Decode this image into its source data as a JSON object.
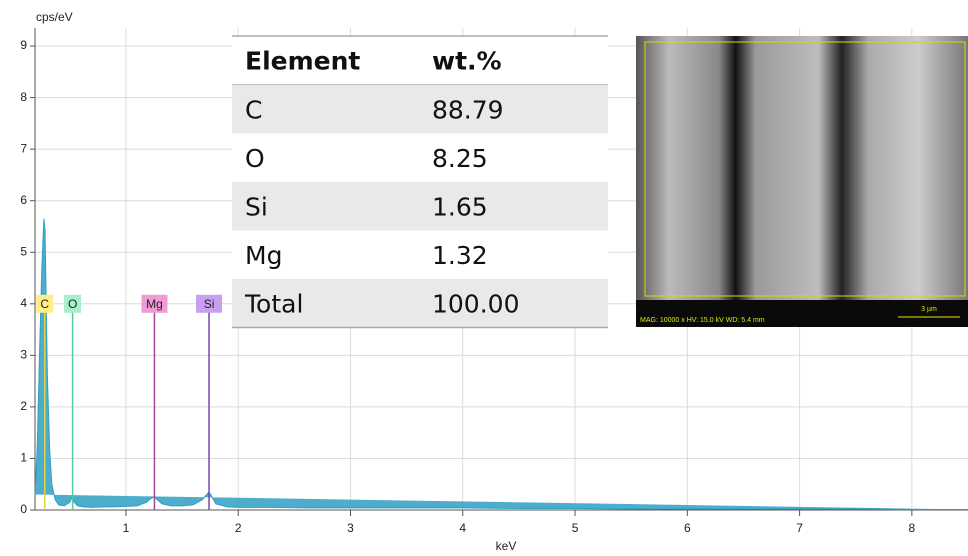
{
  "chart_data": {
    "type": "line",
    "y_label": "cps/eV",
    "x_label": "keV",
    "x": [
      0.19,
      0.21,
      0.23,
      0.25,
      0.26,
      0.27,
      0.28,
      0.29,
      0.3,
      0.32,
      0.34,
      0.37,
      0.4,
      0.45,
      0.5,
      0.52,
      0.54,
      0.57,
      0.62,
      0.7,
      0.8,
      0.9,
      1.0,
      1.1,
      1.18,
      1.22,
      1.25,
      1.28,
      1.32,
      1.4,
      1.5,
      1.6,
      1.68,
      1.72,
      1.74,
      1.76,
      1.8,
      1.9,
      2.0,
      2.3,
      2.6,
      3.0,
      3.5,
      4.0,
      4.5,
      5.0,
      5.5,
      6.0,
      6.5,
      7.0,
      7.5,
      8.0,
      8.5
    ],
    "values": [
      0.3,
      1.2,
      3.0,
      4.6,
      5.2,
      5.65,
      5.4,
      4.0,
      2.6,
      1.2,
      0.5,
      0.2,
      0.1,
      0.08,
      0.15,
      0.25,
      0.15,
      0.08,
      0.06,
      0.05,
      0.06,
      0.06,
      0.07,
      0.08,
      0.15,
      0.22,
      0.25,
      0.2,
      0.12,
      0.08,
      0.08,
      0.1,
      0.2,
      0.3,
      0.35,
      0.28,
      0.12,
      0.06,
      0.05,
      0.05,
      0.04,
      0.04,
      0.04,
      0.04,
      0.03,
      0.03,
      0.02,
      0.02,
      0.02,
      0.02,
      0.02,
      0.01,
      0.01
    ],
    "color": "#2f9fc4",
    "xlim": [
      0.19,
      8.5
    ],
    "ylim": [
      0,
      9.35
    ],
    "xticks": [
      1,
      2,
      3,
      4,
      5,
      6,
      7,
      8
    ],
    "yticks": [
      0,
      1,
      2,
      3,
      4,
      5,
      6,
      7,
      8,
      9
    ],
    "grid": true,
    "annotations": [
      {
        "label": "C",
        "x": 0.277,
        "y": 4,
        "color": "#ffee88",
        "line_color": "#e8d040"
      },
      {
        "label": "O",
        "x": 0.525,
        "y": 4,
        "color": "#a8efcc",
        "line_color": "#55cc99"
      },
      {
        "label": "Mg",
        "x": 1.254,
        "y": 4,
        "color": "#f29ad8",
        "line_color": "#a04894"
      },
      {
        "label": "Si",
        "x": 1.74,
        "y": 4,
        "color": "#c9a0f0",
        "line_color": "#7a46a8"
      }
    ]
  },
  "table": {
    "header": [
      "Element",
      "wt.%"
    ],
    "rows": [
      [
        "C",
        "88.79"
      ],
      [
        "O",
        "8.25"
      ],
      [
        "Si",
        "1.65"
      ],
      [
        "Mg",
        "1.32"
      ],
      [
        "Total",
        "100.00"
      ]
    ]
  },
  "image": {
    "scale_label": "3 µm",
    "info": "MAG: 10000 x  HV: 15.0 kV  WD: 5.4 mm"
  }
}
